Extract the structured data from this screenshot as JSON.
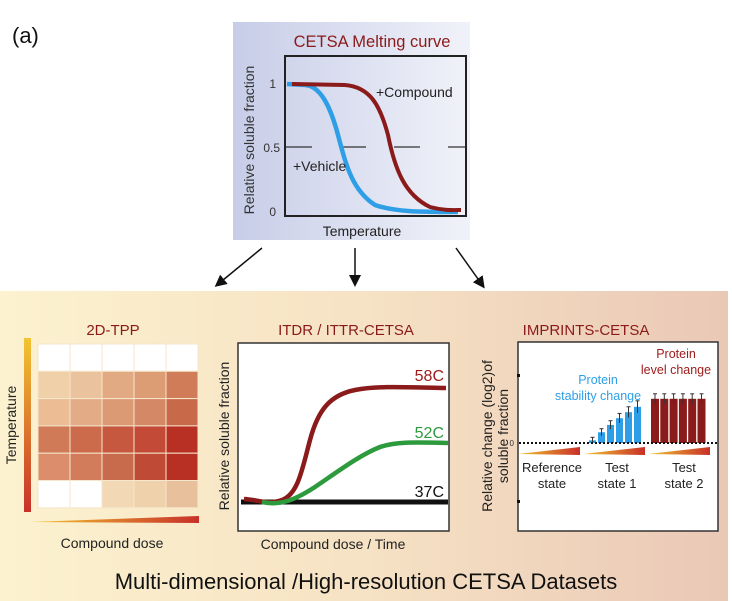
{
  "panel_label": "(a)",
  "melting_curve": {
    "title": "CETSA Melting curve",
    "ylabel": "Relative soluble fraction",
    "xlabel": "Temperature",
    "y_ticks": [
      "1",
      "0.5",
      "0"
    ],
    "series": [
      {
        "name": "+Compound",
        "color": "#8b1a1a"
      },
      {
        "name": "+Vehicle",
        "color": "#2e9fe6"
      }
    ]
  },
  "tpp": {
    "title": "2D-TPP",
    "ylabel": "Temperature",
    "xlabel": "Compound dose",
    "heatmap_colors": [
      [
        "#ffffff",
        "#ffffff",
        "#ffffff",
        "#ffffff",
        "#ffffff"
      ],
      [
        "#f0d0a8",
        "#eac29e",
        "#e2aa82",
        "#dc9c74",
        "#d07c58"
      ],
      [
        "#ecbc94",
        "#e4ac86",
        "#dc9a74",
        "#d48866",
        "#c86a4a"
      ],
      [
        "#d07a58",
        "#cc6a4c",
        "#c65840",
        "#c24a36",
        "#b83024"
      ],
      [
        "#dc8e6c",
        "#d27c5c",
        "#c86a4c",
        "#bf4a36",
        "#b83024"
      ],
      [
        "#ffffff",
        "#ffffff",
        "#f2d8b4",
        "#efd2ac",
        "#e8c09c"
      ]
    ]
  },
  "itdr": {
    "title": "ITDR / ITTR-CETSA",
    "ylabel": "Relative soluble fraction",
    "xlabel": "Compound dose / Time",
    "series": [
      {
        "name": "58C",
        "color": "#8b1a1a"
      },
      {
        "name": "52C",
        "color": "#2e9a3e"
      },
      {
        "name": "37C",
        "color": "#111111"
      }
    ]
  },
  "imprints": {
    "title": "IMPRINTS-CETSA",
    "ylabel_line1": "Relative change (log2)of",
    "ylabel_line2": "soluble fraction",
    "zero_tick": "0",
    "stability_label": [
      "Protein",
      "stability change"
    ],
    "level_label": [
      "Protein",
      "level change"
    ],
    "groups": [
      {
        "label": [
          "Reference",
          "state"
        ],
        "values": []
      },
      {
        "label": [
          "Test",
          "state 1"
        ],
        "color": "#2e9fe6",
        "values": [
          0.04,
          0.16,
          0.27,
          0.37,
          0.46,
          0.54
        ]
      },
      {
        "label": [
          "Test",
          "state 2"
        ],
        "color": "#8b1a1a",
        "values": [
          0.66,
          0.66,
          0.66,
          0.66,
          0.66,
          0.66
        ]
      }
    ]
  },
  "footer": "Multi-dimensional /High-resolution CETSA Datasets",
  "colors": {
    "title_red": "#8b1a1a"
  }
}
